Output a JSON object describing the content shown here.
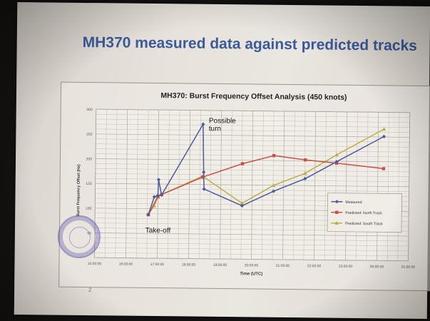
{
  "page": {
    "heading": "MH370 measured data against predicted tracks",
    "page_number": "2"
  },
  "colors": {
    "heading": "#3a5a9a",
    "measured": "#4a5a9e",
    "north": "#c8504a",
    "south": "#b9b04a",
    "grid": "#b0aaa2"
  },
  "chart_data": {
    "type": "line",
    "title": "MH370: Burst Frequency Offset Analysis (450 knots)",
    "xlabel": "Time (UTC)",
    "ylabel": "Burst Frequency Offset (Hz)",
    "xlim": [
      "15:00:00",
      "01:00:00"
    ],
    "ylim": [
      0,
      300
    ],
    "x_ticks": [
      "15:00:00",
      "16:00:00",
      "17:00:00",
      "18:00:00",
      "19:00:00",
      "20:00:00",
      "21:00:00",
      "22:00:00",
      "23:00:00",
      "00:00:00",
      "01:00:00"
    ],
    "y_ticks": [
      0,
      50,
      100,
      150,
      200,
      250,
      300
    ],
    "grid": true,
    "legend_position": "right",
    "series": [
      {
        "name": "Measured",
        "color": "#4a5a9e",
        "marker": "diamond",
        "points": [
          {
            "x": "16:42",
            "y": 88
          },
          {
            "x": "16:53",
            "y": 124
          },
          {
            "x": "17:00",
            "y": 127
          },
          {
            "x": "17:01",
            "y": 159
          },
          {
            "x": "17:07",
            "y": 128
          },
          {
            "x": "18:25",
            "y": 272
          },
          {
            "x": "18:27",
            "y": 175
          },
          {
            "x": "18:28",
            "y": 141
          },
          {
            "x": "19:41",
            "y": 108
          },
          {
            "x": "20:41",
            "y": 138
          },
          {
            "x": "21:41",
            "y": 164
          },
          {
            "x": "22:41",
            "y": 199
          },
          {
            "x": "00:11",
            "y": 251
          }
        ]
      },
      {
        "name": "Predicted: North Track",
        "color": "#c8504a",
        "marker": "square",
        "points": [
          {
            "x": "16:42",
            "y": 88
          },
          {
            "x": "17:00",
            "y": 125
          },
          {
            "x": "17:07",
            "y": 129
          },
          {
            "x": "18:25",
            "y": 165
          },
          {
            "x": "19:41",
            "y": 193
          },
          {
            "x": "20:41",
            "y": 210
          },
          {
            "x": "21:41",
            "y": 202
          },
          {
            "x": "22:41",
            "y": 196
          },
          {
            "x": "00:11",
            "y": 186
          }
        ]
      },
      {
        "name": "Predicted: South Track",
        "color": "#b9b04a",
        "marker": "triangle",
        "points": [
          {
            "x": "16:42",
            "y": 88
          },
          {
            "x": "16:53",
            "y": 106
          },
          {
            "x": "17:00",
            "y": 124
          },
          {
            "x": "17:07",
            "y": 129
          },
          {
            "x": "18:25",
            "y": 167
          },
          {
            "x": "19:41",
            "y": 113
          },
          {
            "x": "20:41",
            "y": 150
          },
          {
            "x": "21:41",
            "y": 175
          },
          {
            "x": "22:41",
            "y": 213
          },
          {
            "x": "00:11",
            "y": 266
          }
        ]
      }
    ],
    "annotations": [
      {
        "text": "Possible turn",
        "lines": [
          "Possible",
          "turn"
        ],
        "x": "18:25",
        "y": 272
      },
      {
        "text": "Take-off",
        "lines": [
          "Take-off"
        ],
        "x": "16:42",
        "y": 88
      }
    ]
  }
}
